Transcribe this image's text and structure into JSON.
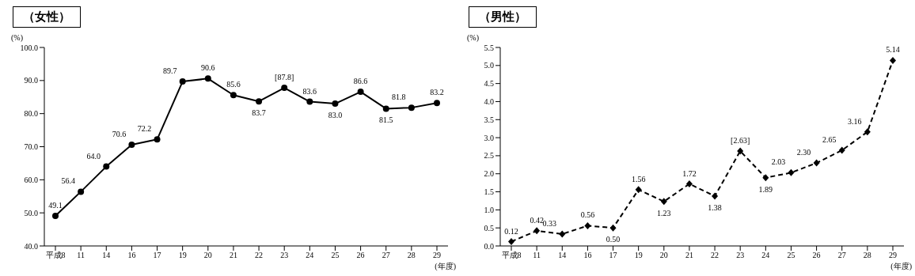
{
  "chart_data": [
    {
      "type": "line",
      "title": "（女性）",
      "ylabel": "(%)",
      "xlabel": "(年度)",
      "categories": [
        "平成8",
        "11",
        "14",
        "16",
        "17",
        "19",
        "20",
        "21",
        "22",
        "23",
        "24",
        "25",
        "26",
        "27",
        "28",
        "29"
      ],
      "series": [
        {
          "color": "#000000",
          "values": [
            49.1,
            56.4,
            64.0,
            70.6,
            72.2,
            89.7,
            90.6,
            85.6,
            83.7,
            87.8,
            83.6,
            83.0,
            86.6,
            81.5,
            81.8,
            83.2
          ],
          "value_labels": [
            "49.1",
            "56.4",
            "64.0",
            "70.6",
            "72.2",
            "89.7",
            "90.6",
            "85.6",
            "83.7",
            "[87.8]",
            "83.6",
            "83.0",
            "86.6",
            "81.5",
            "81.8",
            "83.2"
          ]
        }
      ],
      "ylim": [
        40,
        100
      ],
      "yticks": [
        {
          "value": 40,
          "label": "40.0"
        },
        {
          "value": 50,
          "label": "50.0"
        },
        {
          "value": 60,
          "label": "60.0"
        },
        {
          "value": 70,
          "label": "70.0"
        },
        {
          "value": 80,
          "label": "80.0"
        },
        {
          "value": 90,
          "label": "90.0"
        },
        {
          "value": 100,
          "label": "100.0"
        }
      ],
      "grid": false,
      "legend": false,
      "marker": "circle",
      "line_style": "solid"
    },
    {
      "type": "line",
      "title": "（男性）",
      "ylabel": "(%)",
      "xlabel": "(年度)",
      "categories": [
        "平成8",
        "11",
        "14",
        "16",
        "17",
        "19",
        "20",
        "21",
        "22",
        "23",
        "24",
        "25",
        "26",
        "27",
        "28",
        "29"
      ],
      "series": [
        {
          "color": "#000000",
          "values": [
            0.12,
            0.42,
            0.33,
            0.56,
            0.5,
            1.56,
            1.23,
            1.72,
            1.38,
            2.63,
            1.89,
            2.03,
            2.3,
            2.65,
            3.16,
            5.14
          ],
          "value_labels": [
            "0.12",
            "0.42",
            "0.33",
            "0.56",
            "0.50",
            "1.56",
            "1.23",
            "1.72",
            "1.38",
            "[2.63]",
            "1.89",
            "2.03",
            "2.30",
            "2.65",
            "3.16",
            "5.14"
          ]
        }
      ],
      "ylim": [
        0,
        5.5
      ],
      "yticks": [
        {
          "value": 0,
          "label": "0.0"
        },
        {
          "value": 0.5,
          "label": "0.5"
        },
        {
          "value": 1,
          "label": "1.0"
        },
        {
          "value": 1.5,
          "label": "1.5"
        },
        {
          "value": 2,
          "label": "2.0"
        },
        {
          "value": 2.5,
          "label": "2.5"
        },
        {
          "value": 3,
          "label": "3.0"
        },
        {
          "value": 3.5,
          "label": "3.5"
        },
        {
          "value": 4,
          "label": "4.0"
        },
        {
          "value": 4.5,
          "label": "4.5"
        },
        {
          "value": 5,
          "label": "5.0"
        },
        {
          "value": 5.5,
          "label": "5.5"
        }
      ],
      "grid": false,
      "legend": false,
      "marker": "diamond",
      "line_style": "dashed"
    }
  ]
}
